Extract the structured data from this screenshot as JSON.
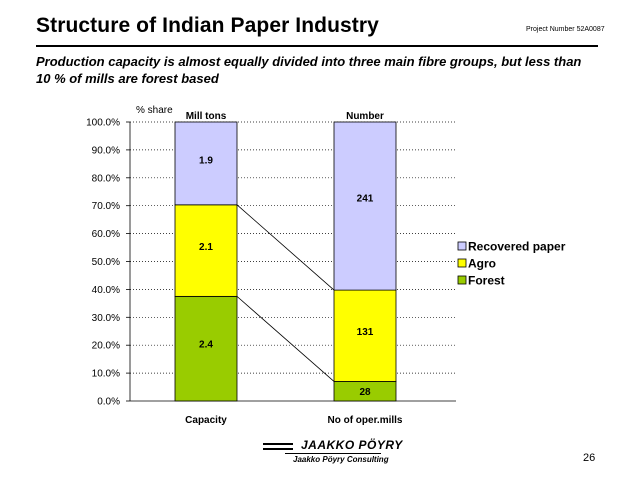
{
  "header": {
    "title": "Structure of Indian Paper Industry",
    "project_number": "Project Number 52A0087",
    "subtitle": "Production capacity is almost equally divided into three main fibre groups, but less than 10 % of mills are forest based"
  },
  "footer": {
    "page_number": "26",
    "logo_main": "JAAKKO PÖYRY",
    "logo_sub": "Jaakko Pöyry Consulting"
  },
  "chart_data": {
    "type": "bar",
    "stacked": true,
    "normalized": true,
    "ylabel": "% share",
    "ylim": [
      0,
      100
    ],
    "ytick_step": 10,
    "yticks": [
      "0.0%",
      "10.0%",
      "20.0%",
      "30.0%",
      "40.0%",
      "50.0%",
      "60.0%",
      "70.0%",
      "80.0%",
      "90.0%",
      "100.0%"
    ],
    "categories": [
      "Capacity",
      "No of oper.mills"
    ],
    "column_headers": [
      "Mill tons",
      "Number"
    ],
    "series": [
      {
        "name": "Forest",
        "color": "#99cc00",
        "values": [
          2.4,
          28
        ],
        "labels": [
          "2.4",
          "28"
        ]
      },
      {
        "name": "Agro",
        "color": "#ffff00",
        "values": [
          2.1,
          131
        ],
        "labels": [
          "2.1",
          "131"
        ]
      },
      {
        "name": "Recovered paper",
        "color": "#ccccff",
        "values": [
          1.9,
          241
        ],
        "labels": [
          "1.9",
          "241"
        ]
      }
    ],
    "legend": [
      "Recovered paper",
      "Agro",
      "Forest"
    ],
    "legend_position": "right",
    "grid": true,
    "connector_lines": true
  }
}
